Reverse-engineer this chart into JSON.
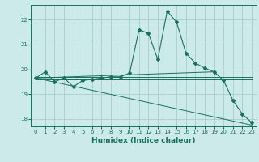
{
  "xlabel": "Humidex (Indice chaleur)",
  "ylabel": "",
  "bg_color": "#cceaea",
  "grid_color": "#aacccc",
  "line_color": "#1a7060",
  "xlim": [
    -0.5,
    23.5
  ],
  "ylim": [
    17.7,
    22.6
  ],
  "yticks": [
    18,
    19,
    20,
    21,
    22
  ],
  "xticks": [
    0,
    1,
    2,
    3,
    4,
    5,
    6,
    7,
    8,
    9,
    10,
    11,
    12,
    13,
    14,
    15,
    16,
    17,
    18,
    19,
    20,
    21,
    22,
    23
  ],
  "series": [
    {
      "x": [
        0,
        1,
        2,
        3,
        4,
        5,
        6,
        7,
        8,
        9,
        10,
        11,
        12,
        13,
        14,
        15,
        16,
        17,
        18,
        19,
        20,
        21,
        22,
        23
      ],
      "y": [
        19.65,
        19.9,
        19.5,
        19.65,
        19.3,
        19.55,
        19.6,
        19.65,
        19.7,
        19.7,
        19.85,
        21.6,
        21.45,
        20.4,
        22.35,
        21.9,
        20.65,
        20.25,
        20.05,
        19.9,
        19.55,
        18.75,
        18.2,
        17.85
      ],
      "has_markers": true
    },
    {
      "x": [
        0,
        23
      ],
      "y": [
        19.7,
        19.7
      ],
      "has_markers": false
    },
    {
      "x": [
        0,
        23
      ],
      "y": [
        19.65,
        17.75
      ],
      "has_markers": false
    },
    {
      "x": [
        0,
        19
      ],
      "y": [
        19.65,
        19.9
      ],
      "has_markers": false
    },
    {
      "x": [
        0,
        23
      ],
      "y": [
        19.6,
        19.6
      ],
      "has_markers": false
    }
  ]
}
